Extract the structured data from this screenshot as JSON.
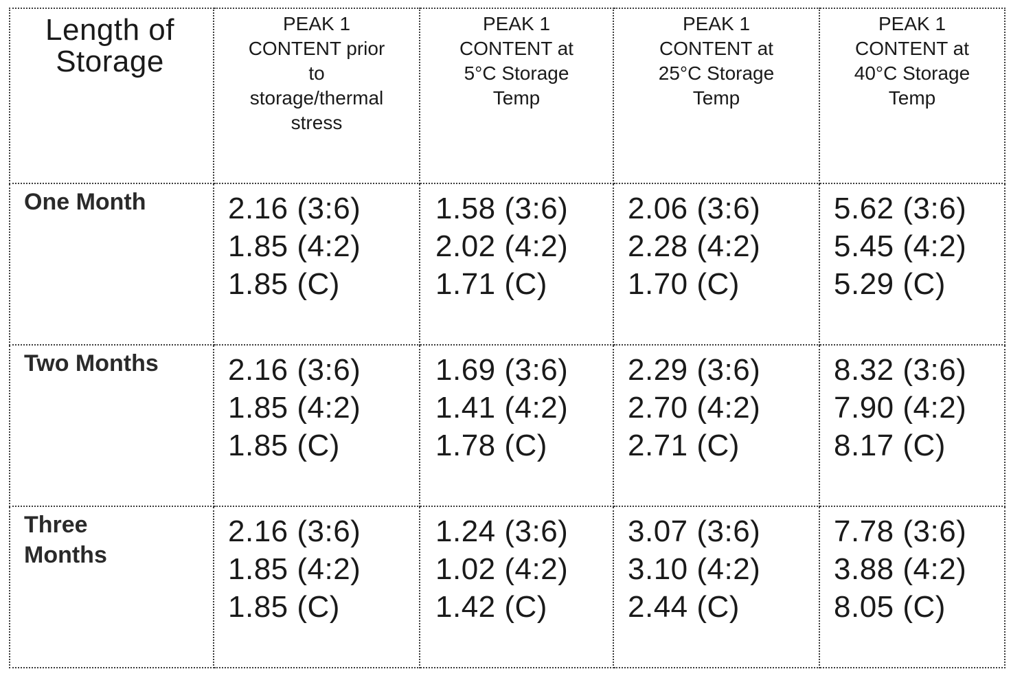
{
  "table": {
    "corner_header": [
      "Length of",
      "Storage"
    ],
    "column_headers": [
      [
        "PEAK 1",
        "CONTENT prior",
        "to",
        "storage/thermal",
        "stress"
      ],
      [
        "PEAK 1",
        "CONTENT at",
        "5°C Storage",
        "Temp"
      ],
      [
        "PEAK 1",
        "CONTENT at",
        "25°C Storage",
        "Temp"
      ],
      [
        "PEAK 1",
        "CONTENT at",
        "40°C Storage",
        "Temp"
      ]
    ],
    "rows": [
      {
        "label": [
          "One Month"
        ],
        "cells": [
          [
            "2.16 (3:6)",
            "1.85 (4:2)",
            "1.85 (C)"
          ],
          [
            "1.58 (3:6)",
            "2.02 (4:2)",
            "1.71 (C)"
          ],
          [
            "2.06 (3:6)",
            "2.28 (4:2)",
            "1.70 (C)"
          ],
          [
            "5.62 (3:6)",
            "5.45 (4:2)",
            "5.29 (C)"
          ]
        ]
      },
      {
        "label": [
          "Two Months"
        ],
        "cells": [
          [
            "2.16 (3:6)",
            "1.85 (4:2)",
            "1.85 (C)"
          ],
          [
            "1.69 (3:6)",
            "1.41 (4:2)",
            "1.78 (C)"
          ],
          [
            "2.29 (3:6)",
            "2.70 (4:2)",
            "2.71 (C)"
          ],
          [
            "8.32 (3:6)",
            "7.90 (4:2)",
            "8.17 (C)"
          ]
        ]
      },
      {
        "label": [
          "Three",
          "Months"
        ],
        "cells": [
          [
            "2.16 (3:6)",
            "1.85 (4:2)",
            "1.85 (C)"
          ],
          [
            "1.24 (3:6)",
            "1.02 (4:2)",
            "1.42 (C)"
          ],
          [
            "3.07 (3:6)",
            "3.10 (4:2)",
            "2.44 (C)"
          ],
          [
            "7.78 (3:6)",
            "3.88 (4:2)",
            "8.05 (C)"
          ]
        ]
      }
    ]
  }
}
